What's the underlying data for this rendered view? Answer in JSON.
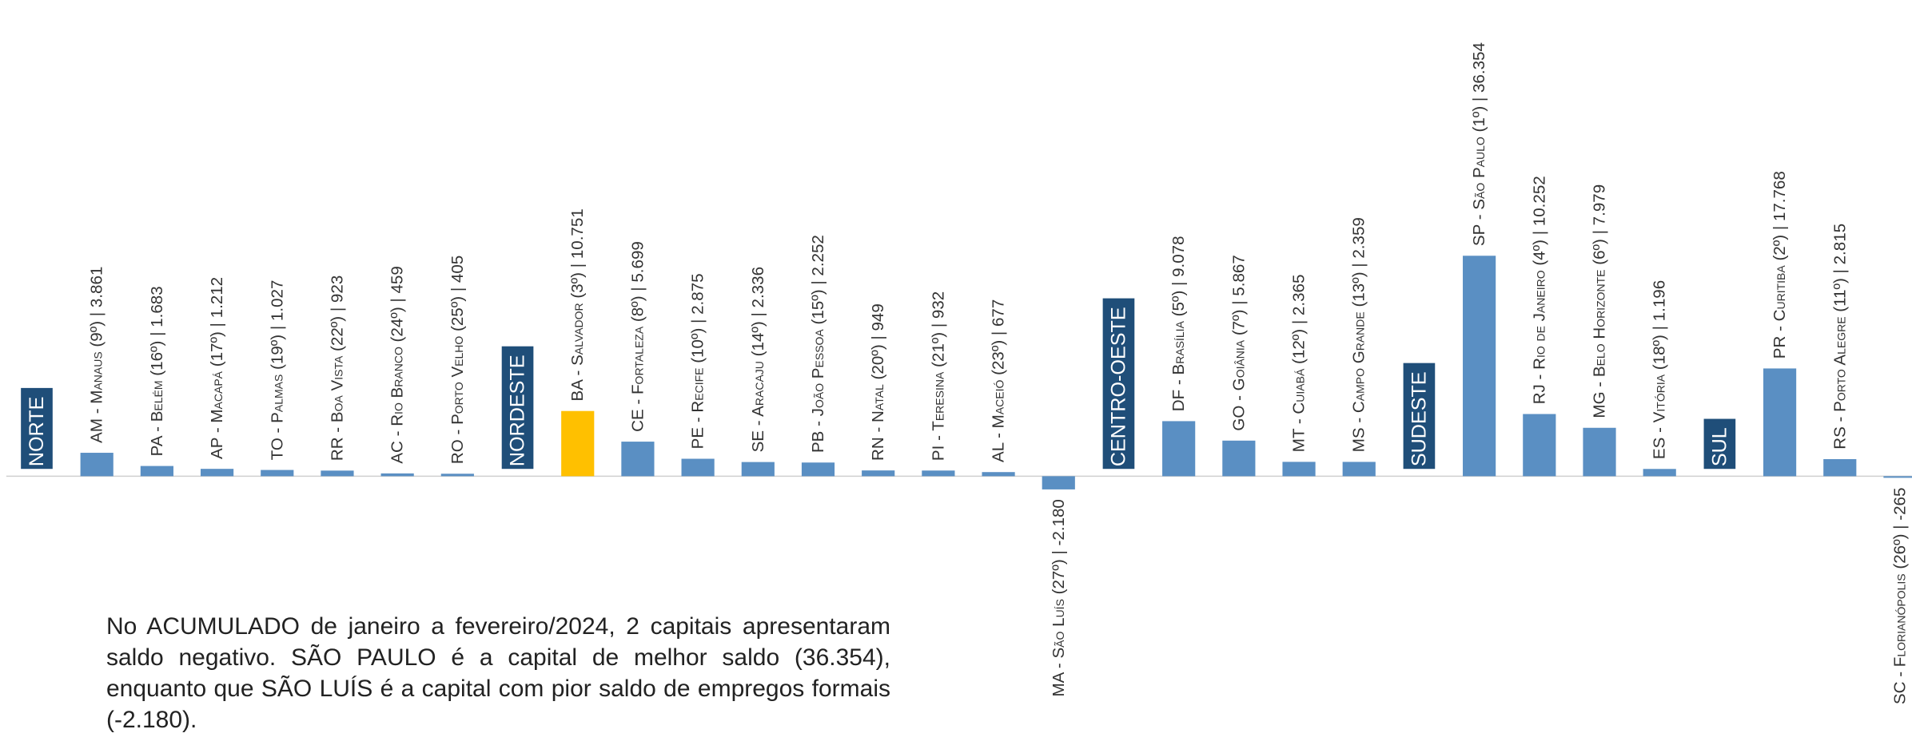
{
  "chart_data": {
    "type": "bar",
    "text": "No ACUMULADO de janeiro a fevereiro/2024, 2 capitais apresentaram saldo negativo. SÃO PAULO é a capital de melhor saldo (36.354), enquanto que SÃO LUÍS é a capital com pior saldo de empregos formais (-2.180).",
    "series": [
      {
        "name": "NORTE",
        "color": "#5a8fc3",
        "categories": [
          "AM - Manaus (9º) | 3.861",
          "PA - Belém (16º) | 1.683",
          "AP - Macapá (17º) | 1.212",
          "TO - Palmas (19º) | 1.027",
          "RR - Boa Vista (22º) | 923",
          "AC - Rio Branco (24º) | 459",
          "RO - Porto Velho (25º) | 405"
        ],
        "values": [
          3861,
          1683,
          1212,
          1027,
          923,
          459,
          405
        ],
        "colors": [
          "#5a8fc3",
          "#5a8fc3",
          "#5a8fc3",
          "#5a8fc3",
          "#5a8fc3",
          "#5a8fc3",
          "#5a8fc3"
        ]
      },
      {
        "name": "NORDESTE",
        "color": "#5a8fc3",
        "categories": [
          "BA - Salvador (3º) | 10.751",
          "CE - Fortaleza (8º) | 5.699",
          "PE - Recife (10º) | 2.875",
          "SE - Aracaju (14º) | 2.336",
          "PB - João Pessoa (15º) | 2.252",
          "RN - Natal (20º) | 949",
          "PI - Teresina (21º) | 932",
          "AL - Maceió (23º) | 677",
          "MA - São Luís (27º) | -2.180"
        ],
        "values": [
          10751,
          5699,
          2875,
          2336,
          2252,
          949,
          932,
          677,
          -2180
        ],
        "colors": [
          "#ffc000",
          "#5a8fc3",
          "#5a8fc3",
          "#5a8fc3",
          "#5a8fc3",
          "#5a8fc3",
          "#5a8fc3",
          "#5a8fc3",
          "#5a8fc3"
        ]
      },
      {
        "name": "CENTRO-OESTE",
        "color": "#5a8fc3",
        "categories": [
          "DF - Brasília (5º) | 9.078",
          "GO - Goiânia (7º) | 5.867",
          "MT - Cuiabá (12º) | 2.365",
          "MS - Campo Grande (13º) | 2.359"
        ],
        "values": [
          9078,
          5867,
          2365,
          2359
        ],
        "colors": [
          "#5a8fc3",
          "#5a8fc3",
          "#5a8fc3",
          "#5a8fc3"
        ]
      },
      {
        "name": "SUDESTE",
        "color": "#5a8fc3",
        "categories": [
          "SP - São Paulo (1º) | 36.354",
          "RJ - Rio de Janeiro (4º) | 10.252",
          "MG - Belo Horizonte (6º) | 7.979",
          "ES - Vitória (18º) | 1.196"
        ],
        "values": [
          36354,
          10252,
          7979,
          1196
        ],
        "colors": [
          "#5a8fc3",
          "#5a8fc3",
          "#5a8fc3",
          "#5a8fc3"
        ]
      },
      {
        "name": "SUL",
        "color": "#5a8fc3",
        "categories": [
          "PR - Curitiba (2º) | 17.768",
          "RS - Porto Alegre (11º) | 2.815",
          "SC - Florianópolis (26º) | -265"
        ],
        "values": [
          17768,
          2815,
          -265
        ],
        "colors": [
          "#5a8fc3",
          "#5a8fc3",
          "#5a8fc3"
        ]
      }
    ]
  }
}
